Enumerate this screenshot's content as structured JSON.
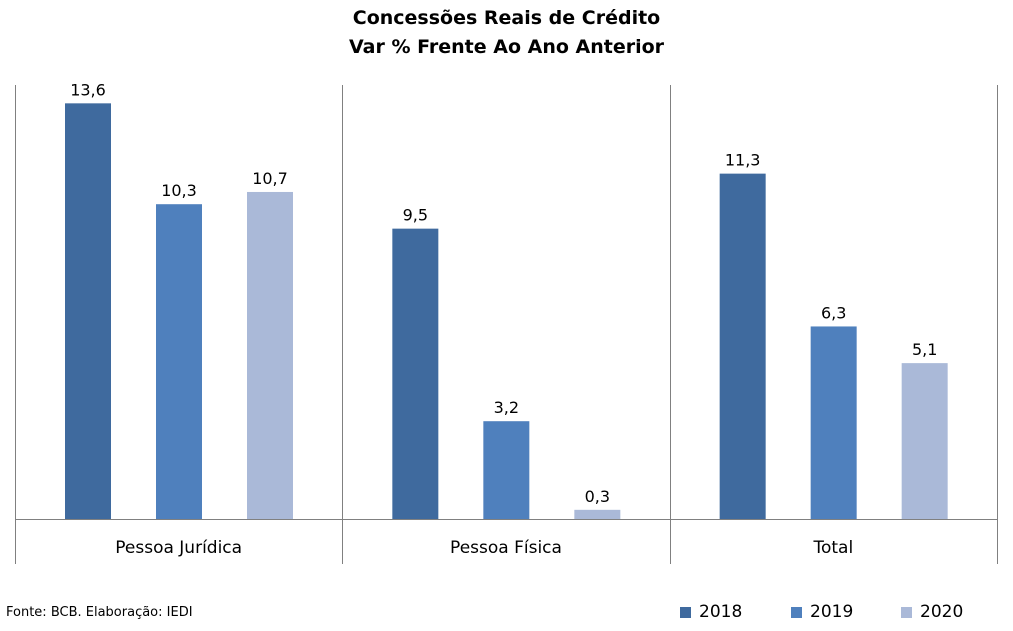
{
  "chart_data": {
    "type": "bar",
    "title": "Concessões Reais de Crédito",
    "subtitle": "Var % Frente Ao Ano Anterior",
    "categories": [
      "Pessoa Jurídica",
      "Pessoa Física",
      "Total"
    ],
    "series": [
      {
        "name": "2018",
        "color": "#3F6A9E",
        "values": [
          13.6,
          9.5,
          11.3
        ],
        "labels": [
          "13,6",
          "9,5",
          "11,3"
        ]
      },
      {
        "name": "2019",
        "color": "#4F80BD",
        "values": [
          10.3,
          3.2,
          6.3
        ],
        "labels": [
          "10,3",
          "3,2",
          "6,3"
        ]
      },
      {
        "name": "2020",
        "color": "#AAB9D8",
        "values": [
          10.7,
          0.3,
          5.1
        ],
        "labels": [
          "10,7",
          "0,3",
          "5,1"
        ]
      }
    ],
    "ylim": [
      0,
      14.2
    ],
    "grid": false,
    "legend": "bottom-right"
  },
  "source": "Fonte: BCB. Elaboração: IEDI"
}
